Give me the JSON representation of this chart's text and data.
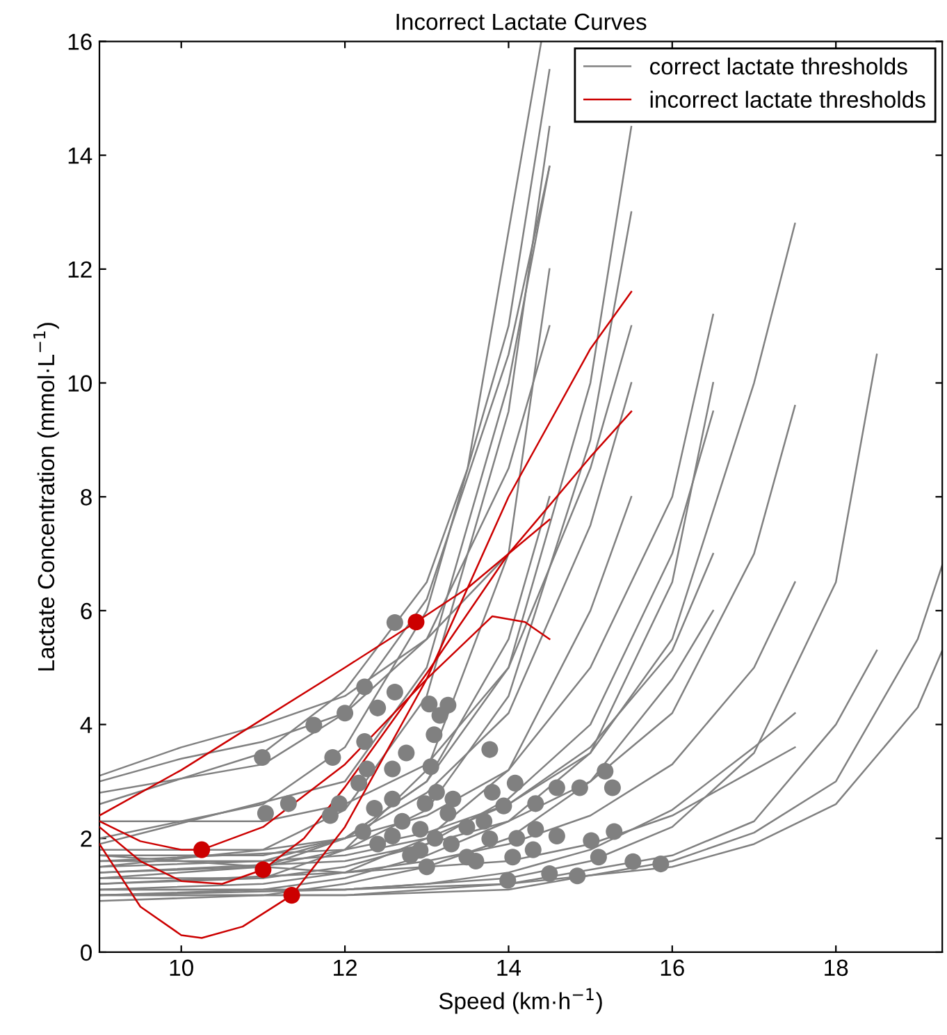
{
  "chart_data": {
    "type": "line",
    "title": "Incorrect Lactate Curves",
    "xlabel": "Speed (km·h$^{−1}$)",
    "ylabel": "Lactate Concentration (mmol·L$^{−1}$)",
    "xlim": [
      9,
      19.3
    ],
    "xticks": [
      10,
      12,
      14,
      16,
      18
    ],
    "ylim": [
      0,
      16
    ],
    "yticks": [
      0,
      2,
      4,
      6,
      8,
      10,
      12,
      14,
      16
    ],
    "legend": "top right",
    "marker": "none",
    "series": [
      {
        "name": "correct lactate thresholds",
        "color": "#808080",
        "x": [
          9,
          11,
          12,
          13,
          14,
          14.5
        ],
        "values": [
          1.5,
          1.8,
          2.5,
          4.5,
          9.5,
          14.5
        ]
      },
      {
        "color": "#808080",
        "x": [
          9,
          11,
          12,
          13,
          14,
          14.5
        ],
        "values": [
          2.0,
          2.6,
          3.6,
          6.0,
          11,
          15.5
        ]
      },
      {
        "color": "#808080",
        "x": [
          9,
          11,
          12,
          13,
          14,
          14.5
        ],
        "values": [
          1.2,
          1.3,
          1.8,
          3.2,
          7,
          12.0
        ]
      },
      {
        "color": "#808080",
        "x": [
          9,
          11,
          12,
          13,
          14,
          14.5
        ],
        "values": [
          2.8,
          3.3,
          4.2,
          6.2,
          10.5,
          13.8
        ]
      },
      {
        "color": "#808080",
        "x": [
          9,
          11,
          12,
          13,
          14,
          14.5
        ],
        "values": [
          1.6,
          1.6,
          2.0,
          3.0,
          5.5,
          8.0
        ]
      },
      {
        "color": "#808080",
        "x": [
          9,
          10,
          11,
          12,
          13,
          14,
          14.5
        ],
        "values": [
          3.0,
          3.4,
          3.7,
          4.2,
          5.5,
          8.5,
          11.0
        ]
      },
      {
        "color": "#808080",
        "x": [
          9,
          11,
          12,
          13,
          14,
          15,
          15.5
        ],
        "values": [
          1.4,
          1.5,
          1.8,
          2.5,
          4.5,
          9.0,
          13.0
        ]
      },
      {
        "color": "#808080",
        "x": [
          9,
          11,
          12,
          13,
          14,
          15,
          15.5
        ],
        "values": [
          1.7,
          1.7,
          2.0,
          2.8,
          4.2,
          7.5,
          10.0
        ]
      },
      {
        "color": "#808080",
        "x": [
          9,
          11,
          12,
          13,
          14,
          15,
          15.5
        ],
        "values": [
          1.1,
          1.2,
          1.4,
          2.0,
          3.2,
          6.0,
          8.0
        ]
      },
      {
        "color": "#808080",
        "x": [
          9,
          11,
          12,
          13,
          14,
          15,
          15.5
        ],
        "values": [
          2.3,
          2.3,
          2.6,
          3.3,
          5.0,
          8.5,
          11.0
        ]
      },
      {
        "color": "#808080",
        "x": [
          9,
          11,
          12,
          13,
          14,
          15,
          15.5
        ],
        "values": [
          1.3,
          1.5,
          2.0,
          3.0,
          5.0,
          10.0,
          14.5
        ]
      },
      {
        "color": "#808080",
        "x": [
          9,
          11,
          12,
          13,
          14,
          15,
          16,
          16.5
        ],
        "values": [
          1.3,
          1.3,
          1.5,
          1.9,
          2.7,
          4.0,
          7.0,
          9.5
        ]
      },
      {
        "color": "#808080",
        "x": [
          9,
          11,
          12,
          13,
          14,
          15,
          16,
          16.5
        ],
        "values": [
          1.0,
          1.1,
          1.3,
          1.7,
          2.3,
          3.5,
          6.5,
          10.0
        ]
      },
      {
        "color": "#808080",
        "x": [
          9,
          11,
          12,
          13,
          14,
          15,
          16,
          16.5
        ],
        "values": [
          1.8,
          1.8,
          2.0,
          2.4,
          3.2,
          5.0,
          8.0,
          11.2
        ]
      },
      {
        "color": "#808080",
        "x": [
          9,
          11,
          12,
          13,
          14,
          15,
          16,
          16.5
        ],
        "values": [
          1.5,
          1.6,
          1.7,
          2.0,
          2.6,
          3.6,
          5.3,
          7.0
        ]
      },
      {
        "color": "#808080",
        "x": [
          9,
          11,
          12,
          13,
          14,
          15,
          16,
          16.5
        ],
        "values": [
          0.9,
          1.0,
          1.2,
          1.5,
          2.0,
          3.0,
          4.8,
          6.0
        ]
      },
      {
        "color": "#808080",
        "x": [
          9,
          12,
          13,
          14,
          15,
          16,
          17,
          17.5
        ],
        "values": [
          1.4,
          1.6,
          1.9,
          2.3,
          3.0,
          4.2,
          7.0,
          9.6
        ]
      },
      {
        "color": "#808080",
        "x": [
          9,
          12,
          13,
          14,
          15,
          16,
          17,
          17.5
        ],
        "values": [
          1.2,
          1.4,
          1.6,
          1.9,
          2.4,
          3.3,
          5.0,
          6.5
        ]
      },
      {
        "color": "#808080",
        "x": [
          9,
          12,
          13,
          14,
          15,
          16,
          17,
          17.5
        ],
        "values": [
          1.0,
          1.1,
          1.2,
          1.4,
          1.8,
          2.5,
          3.6,
          4.2
        ]
      },
      {
        "color": "#808080",
        "x": [
          9,
          12,
          13,
          14,
          15,
          16,
          17,
          17.5
        ],
        "values": [
          1.6,
          1.8,
          2.1,
          2.6,
          3.5,
          5.5,
          10.0,
          12.8
        ]
      },
      {
        "color": "#808080",
        "x": [
          9,
          12,
          14,
          15,
          16,
          17,
          17.5
        ],
        "values": [
          1.7,
          1.4,
          1.6,
          1.9,
          2.4,
          3.2,
          3.6
        ]
      },
      {
        "color": "#808080",
        "x": [
          9,
          12,
          14,
          15,
          16,
          17,
          18,
          18.5
        ],
        "values": [
          1.1,
          1.1,
          1.3,
          1.6,
          2.2,
          3.5,
          6.5,
          10.5
        ]
      },
      {
        "color": "#808080",
        "x": [
          9,
          12,
          14,
          16,
          17,
          18,
          18.5
        ],
        "values": [
          1.0,
          1.0,
          1.2,
          1.7,
          2.3,
          4.0,
          5.3
        ]
      },
      {
        "color": "#808080",
        "x": [
          9,
          12,
          14,
          16,
          17,
          18,
          19,
          19.3
        ],
        "values": [
          1.0,
          1.0,
          1.1,
          1.6,
          2.1,
          3.0,
          5.5,
          6.8
        ]
      },
      {
        "color": "#808080",
        "x": [
          9,
          12,
          14,
          16,
          17,
          18,
          19,
          19.3
        ],
        "values": [
          1.1,
          1.1,
          1.2,
          1.5,
          1.9,
          2.6,
          4.3,
          5.3
        ]
      },
      {
        "color": "#808080",
        "x": [
          9,
          11,
          12,
          13,
          13.5,
          14.4
        ],
        "values": [
          2.6,
          3.5,
          4.6,
          6.5,
          8.5,
          16
        ]
      },
      {
        "color": "#808080",
        "x": [
          9,
          10,
          11,
          12,
          13,
          14
        ],
        "values": [
          3.1,
          3.6,
          4.0,
          4.5,
          5.5,
          7.0
        ]
      },
      {
        "color": "#808080",
        "x": [
          9,
          12,
          13,
          14,
          14.5
        ],
        "values": [
          1.9,
          3.0,
          5.0,
          10.0,
          13.8
        ]
      },
      {
        "type": "scatter",
        "marker": "circle",
        "color": "#808080",
        "x": [
          12.61,
          12.24,
          12.61,
          11.62,
          12.0,
          12.4,
          13.03,
          13.26,
          13.16,
          13.09,
          10.99,
          11.85,
          12.24,
          12.75,
          13.77,
          12.27,
          12.58,
          13.05,
          12.17,
          11.31,
          11.03,
          11.93,
          12.36,
          12.58,
          12.98,
          13.12,
          13.32,
          13.8,
          14.08,
          14.59,
          14.87,
          15.18,
          15.27,
          11.82,
          12.22,
          12.58,
          12.92,
          13.49,
          13.77,
          14.33,
          14.33,
          14.59,
          12.92,
          13.49,
          14.05,
          15.01,
          15.29,
          15.1,
          15.52,
          15.86,
          13.99,
          14.5,
          14.84,
          13.26,
          13.94,
          12.7,
          13.1,
          13.3,
          13.7,
          14.1,
          13.6,
          12.4,
          14.3,
          13.0,
          12.8
        ],
        "values": [
          5.79,
          4.66,
          4.57,
          3.99,
          4.2,
          4.29,
          4.36,
          4.34,
          4.16,
          3.82,
          3.42,
          3.42,
          3.7,
          3.5,
          3.56,
          3.22,
          3.22,
          3.26,
          2.97,
          2.61,
          2.44,
          2.61,
          2.53,
          2.69,
          2.61,
          2.81,
          2.69,
          2.81,
          2.97,
          2.89,
          2.89,
          3.18,
          2.89,
          2.4,
          2.12,
          2.04,
          2.16,
          2.2,
          1.99,
          2.61,
          2.16,
          2.04,
          1.79,
          1.67,
          1.67,
          1.96,
          2.12,
          1.67,
          1.59,
          1.55,
          1.26,
          1.38,
          1.34,
          2.44,
          2.57,
          2.3,
          2.0,
          1.9,
          2.3,
          2.0,
          1.6,
          1.9,
          1.8,
          1.5,
          1.7
        ]
      },
      {
        "name": "incorrect lactate thresholds",
        "color": "#cc0000",
        "x": [
          9,
          10,
          11,
          12,
          12.87,
          13.5,
          14.5
        ],
        "values": [
          2.4,
          3.2,
          4.1,
          5.0,
          5.8,
          6.4,
          7.6
        ]
      },
      {
        "color": "#cc0000",
        "x": [
          9,
          9.5,
          10,
          10.25,
          11,
          12,
          13,
          13.8,
          14.2,
          14.5
        ],
        "values": [
          2.3,
          1.95,
          1.8,
          1.8,
          2.2,
          3.3,
          4.8,
          5.9,
          5.8,
          5.5
        ]
      },
      {
        "color": "#cc0000",
        "x": [
          9,
          9.5,
          10,
          10.5,
          11,
          11.5,
          12,
          13,
          14,
          15,
          15.5
        ],
        "values": [
          2.2,
          1.6,
          1.25,
          1.2,
          1.45,
          2.0,
          2.9,
          4.9,
          7.0,
          8.7,
          9.5
        ]
      },
      {
        "color": "#cc0000",
        "x": [
          9,
          9.5,
          10,
          10.25,
          10.75,
          11.35,
          12,
          13,
          14,
          15,
          15.5
        ],
        "values": [
          1.9,
          0.8,
          0.3,
          0.25,
          0.45,
          1.0,
          2.2,
          4.8,
          8.0,
          10.6,
          11.6
        ]
      },
      {
        "type": "scatter",
        "marker": "circle",
        "color": "#cc0000",
        "x": [
          10.25,
          11.0,
          11.35,
          12.87
        ],
        "values": [
          1.8,
          1.45,
          1.0,
          5.8
        ]
      }
    ]
  }
}
